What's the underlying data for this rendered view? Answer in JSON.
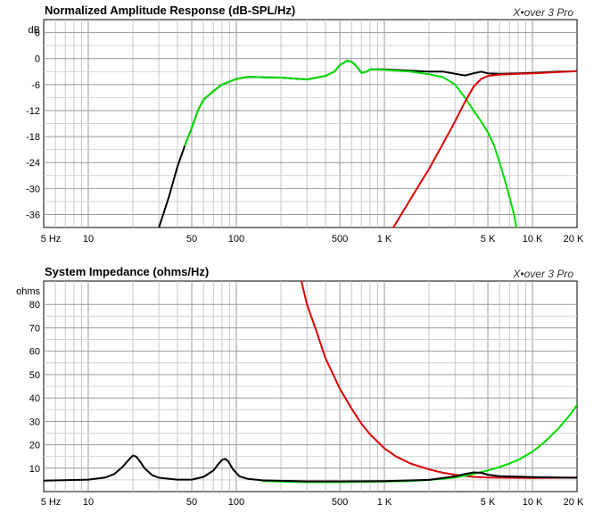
{
  "chart_data": [
    {
      "type": "line",
      "title": "Normalized Amplitude Response (dB-SPL/Hz)",
      "watermark": "X•over 3 Pro",
      "y_unit_label": "dB",
      "x_scale": "log",
      "xlim": [
        5,
        20000
      ],
      "ylim": [
        -39,
        9
      ],
      "x_tick_labels": [
        {
          "value": 5,
          "label": "5 Hz"
        },
        {
          "value": 10,
          "label": "10"
        },
        {
          "value": 50,
          "label": "50"
        },
        {
          "value": 100,
          "label": "100"
        },
        {
          "value": 500,
          "label": "500"
        },
        {
          "value": 1000,
          "label": "1 K"
        },
        {
          "value": 5000,
          "label": "5 K"
        },
        {
          "value": 10000,
          "label": "10 K"
        },
        {
          "value": 20000,
          "label": "20 K"
        }
      ],
      "y_ticks": [
        6,
        0,
        -6,
        -12,
        -18,
        -24,
        -30,
        -36
      ],
      "grid": true,
      "series": [
        {
          "color": "#000000",
          "points": [
            [
              30,
              -39
            ],
            [
              35,
              -32
            ],
            [
              40,
              -25
            ],
            [
              45,
              -20
            ],
            [
              50,
              -16
            ],
            [
              55,
              -12
            ],
            [
              60,
              -9.5
            ],
            [
              70,
              -7.5
            ],
            [
              80,
              -6
            ],
            [
              100,
              -4.7
            ],
            [
              120,
              -4.2
            ],
            [
              150,
              -4.3
            ],
            [
              200,
              -4.4
            ],
            [
              300,
              -4.8
            ],
            [
              400,
              -4
            ],
            [
              460,
              -3
            ],
            [
              500,
              -1.5
            ],
            [
              560,
              -0.5
            ],
            [
              600,
              -0.7
            ],
            [
              650,
              -1.8
            ],
            [
              700,
              -3.3
            ],
            [
              760,
              -3
            ],
            [
              800,
              -2.5
            ],
            [
              1000,
              -2.5
            ],
            [
              1500,
              -2.8
            ],
            [
              2000,
              -3
            ],
            [
              2500,
              -3
            ],
            [
              3000,
              -3.5
            ],
            [
              3500,
              -3.9
            ],
            [
              4000,
              -3.4
            ],
            [
              4500,
              -3
            ],
            [
              5000,
              -3.4
            ],
            [
              6000,
              -3.5
            ],
            [
              8000,
              -3.4
            ],
            [
              10000,
              -3.3
            ],
            [
              15000,
              -3
            ],
            [
              20000,
              -2.9
            ]
          ]
        },
        {
          "color": "#00dd00",
          "points": [
            [
              45,
              -20
            ],
            [
              50,
              -16
            ],
            [
              55,
              -12
            ],
            [
              60,
              -9.5
            ],
            [
              70,
              -7.5
            ],
            [
              80,
              -6
            ],
            [
              100,
              -4.7
            ],
            [
              120,
              -4.2
            ],
            [
              150,
              -4.3
            ],
            [
              200,
              -4.4
            ],
            [
              300,
              -4.8
            ],
            [
              400,
              -4
            ],
            [
              460,
              -3
            ],
            [
              500,
              -1.5
            ],
            [
              560,
              -0.5
            ],
            [
              600,
              -0.7
            ],
            [
              650,
              -1.8
            ],
            [
              700,
              -3.3
            ],
            [
              760,
              -3
            ],
            [
              800,
              -2.5
            ],
            [
              1000,
              -2.6
            ],
            [
              1500,
              -3
            ],
            [
              2000,
              -3.6
            ],
            [
              2500,
              -4.3
            ],
            [
              3000,
              -6
            ],
            [
              3500,
              -9
            ],
            [
              4000,
              -12
            ],
            [
              4500,
              -14.5
            ],
            [
              5000,
              -17
            ],
            [
              5500,
              -20
            ],
            [
              6000,
              -24
            ],
            [
              6500,
              -28
            ],
            [
              7000,
              -32
            ],
            [
              7500,
              -36
            ],
            [
              7800,
              -39
            ]
          ]
        },
        {
          "color": "#dd0000",
          "points": [
            [
              1150,
              -39
            ],
            [
              1300,
              -36
            ],
            [
              1500,
              -32.5
            ],
            [
              1800,
              -28
            ],
            [
              2000,
              -25.5
            ],
            [
              2500,
              -19.5
            ],
            [
              3000,
              -14.5
            ],
            [
              3500,
              -10
            ],
            [
              4000,
              -6.5
            ],
            [
              4500,
              -4.7
            ],
            [
              5000,
              -4
            ],
            [
              6000,
              -3.7
            ],
            [
              8000,
              -3.5
            ],
            [
              10000,
              -3.4
            ],
            [
              15000,
              -3.1
            ],
            [
              20000,
              -2.9
            ]
          ]
        }
      ]
    },
    {
      "type": "line",
      "title": "System Impedance (ohms/Hz)",
      "watermark": "X•over 3 Pro",
      "y_unit_label": "ohms",
      "x_scale": "log",
      "xlim": [
        5,
        20000
      ],
      "ylim": [
        0,
        90
      ],
      "x_tick_labels": [
        {
          "value": 5,
          "label": "5 Hz"
        },
        {
          "value": 10,
          "label": "10"
        },
        {
          "value": 50,
          "label": "50"
        },
        {
          "value": 100,
          "label": "100"
        },
        {
          "value": 500,
          "label": "500"
        },
        {
          "value": 1000,
          "label": "1 K"
        },
        {
          "value": 5000,
          "label": "5 K"
        },
        {
          "value": 10000,
          "label": "10 K"
        },
        {
          "value": 20000,
          "label": "20 K"
        }
      ],
      "y_ticks": [
        80,
        70,
        60,
        50,
        40,
        30,
        20,
        10
      ],
      "grid": true,
      "series": [
        {
          "color": "#dd0000",
          "points": [
            [
              275,
              90
            ],
            [
              300,
              80
            ],
            [
              350,
              68
            ],
            [
              400,
              57
            ],
            [
              500,
              44
            ],
            [
              600,
              35.5
            ],
            [
              700,
              29
            ],
            [
              800,
              24.5
            ],
            [
              1000,
              18.5
            ],
            [
              1200,
              15
            ],
            [
              1500,
              12
            ],
            [
              2000,
              9.5
            ],
            [
              2500,
              8
            ],
            [
              3000,
              7.2
            ],
            [
              3500,
              6.7
            ],
            [
              4000,
              6.3
            ],
            [
              5000,
              6
            ],
            [
              7000,
              5.9
            ],
            [
              10000,
              5.8
            ],
            [
              15000,
              5.9
            ],
            [
              20000,
              6
            ]
          ]
        },
        {
          "color": "#00dd00",
          "points": [
            [
              150,
              4.5
            ],
            [
              300,
              4
            ],
            [
              500,
              4
            ],
            [
              800,
              4.2
            ],
            [
              1000,
              4.3
            ],
            [
              1500,
              4.5
            ],
            [
              2000,
              5
            ],
            [
              2500,
              5.5
            ],
            [
              3000,
              6
            ],
            [
              3500,
              6.8
            ],
            [
              4000,
              7.6
            ],
            [
              5000,
              9
            ],
            [
              6000,
              10.5
            ],
            [
              7000,
              12
            ],
            [
              8000,
              13.5
            ],
            [
              10000,
              17
            ],
            [
              12000,
              21
            ],
            [
              15000,
              27
            ],
            [
              18000,
              33
            ],
            [
              20000,
              37
            ]
          ]
        },
        {
          "color": "#000000",
          "points": [
            [
              5,
              4.7
            ],
            [
              10,
              5.1
            ],
            [
              13,
              6
            ],
            [
              15,
              7.5
            ],
            [
              17,
              10.5
            ],
            [
              19,
              14
            ],
            [
              20,
              15.4
            ],
            [
              21,
              15
            ],
            [
              22,
              13.5
            ],
            [
              24,
              10
            ],
            [
              27,
              7
            ],
            [
              30,
              5.9
            ],
            [
              40,
              5.1
            ],
            [
              50,
              5.1
            ],
            [
              60,
              6.3
            ],
            [
              70,
              9
            ],
            [
              75,
              11.5
            ],
            [
              80,
              13.5
            ],
            [
              84,
              14
            ],
            [
              88,
              13
            ],
            [
              95,
              9.5
            ],
            [
              105,
              6.5
            ],
            [
              120,
              5.4
            ],
            [
              150,
              4.8
            ],
            [
              200,
              4.6
            ],
            [
              300,
              4.4
            ],
            [
              500,
              4.4
            ],
            [
              1000,
              4.5
            ],
            [
              2000,
              5
            ],
            [
              3000,
              6.5
            ],
            [
              3500,
              7.5
            ],
            [
              4000,
              8.2
            ],
            [
              4500,
              8
            ],
            [
              5000,
              7.2
            ],
            [
              6000,
              6.6
            ],
            [
              8000,
              6.4
            ],
            [
              10000,
              6.2
            ],
            [
              15000,
              6
            ],
            [
              20000,
              5.9
            ]
          ]
        }
      ]
    }
  ]
}
